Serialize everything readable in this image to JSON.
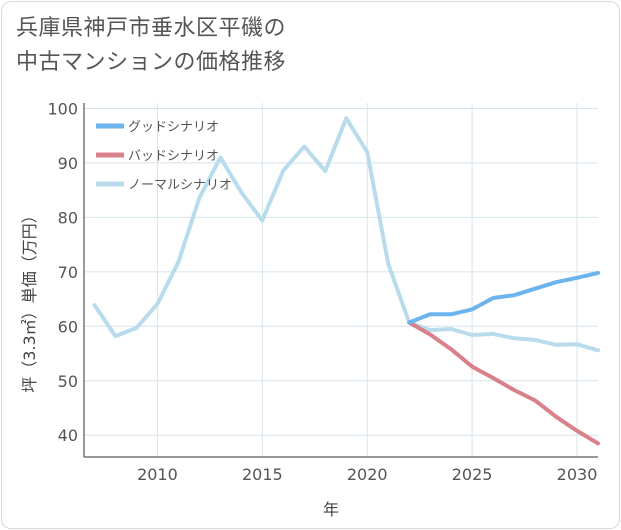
{
  "title_lines": [
    "兵庫県神戸市垂水区平磯の",
    "中古マンションの価格推移"
  ],
  "chart_data": {
    "type": "line",
    "title": "兵庫県神戸市垂水区平磯の中古マンションの価格推移",
    "xlabel": "年",
    "ylabel": "坪（3.3㎡）単価（万円）",
    "xlim": [
      2006.5,
      2031
    ],
    "ylim": [
      36,
      101
    ],
    "xticks": [
      2010,
      2015,
      2020,
      2025,
      2030
    ],
    "yticks": [
      40,
      50,
      60,
      70,
      80,
      90,
      100
    ],
    "grid": true,
    "legend_position": "top-left",
    "series": [
      {
        "name": "グッドシナリオ",
        "color": "#6cb4ee",
        "x": [
          2022,
          2023,
          2024,
          2025,
          2026,
          2027,
          2028,
          2029,
          2030,
          2031
        ],
        "y": [
          60.7,
          62.2,
          62.2,
          63.1,
          65.2,
          65.7,
          66.9,
          68.1,
          68.9,
          69.8
        ]
      },
      {
        "name": "バッドシナリオ",
        "color": "#d9808a",
        "x": [
          2022,
          2023,
          2024,
          2025,
          2026,
          2027,
          2028,
          2029,
          2030,
          2031
        ],
        "y": [
          60.7,
          58.5,
          55.8,
          52.6,
          50.5,
          48.3,
          46.4,
          43.4,
          40.8,
          38.5
        ]
      },
      {
        "name": "ノーマルシナリオ",
        "color": "#b8dcec",
        "x": [
          2007,
          2008,
          2009,
          2010,
          2011,
          2012,
          2013,
          2014,
          2015,
          2016,
          2017,
          2018,
          2019,
          2020,
          2021,
          2022,
          2023,
          2024,
          2025,
          2026,
          2027,
          2028,
          2029,
          2030,
          2031
        ],
        "y": [
          63.9,
          58.2,
          59.7,
          64.1,
          71.8,
          83.6,
          91.0,
          84.6,
          79.4,
          88.6,
          93.0,
          88.5,
          98.2,
          92.0,
          71.5,
          60.7,
          59.3,
          59.5,
          58.4,
          58.6,
          57.8,
          57.5,
          56.6,
          56.7,
          55.6
        ]
      }
    ]
  }
}
